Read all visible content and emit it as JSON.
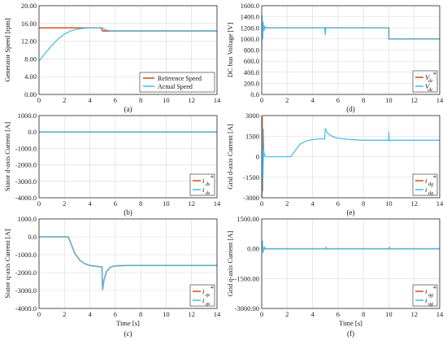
{
  "colors": {
    "reference": "#d95319",
    "actual": "#4dbeee",
    "grid": "#d9d9d9",
    "axis": "#262626"
  },
  "chart_data": [
    {
      "id": "a",
      "type": "line",
      "caption": "(a)",
      "xlabel": "",
      "ylabel": "Generator Speed [rpm]",
      "xlim": [
        0,
        14
      ],
      "ylim": [
        0,
        20
      ],
      "xticks": [
        "0",
        "2",
        "4",
        "6",
        "8",
        "10",
        "12",
        "14"
      ],
      "yticks": [
        "0.00",
        "4.00",
        "8.00",
        "12.00",
        "16.00",
        "20.00"
      ],
      "legend_position": "bottom-right",
      "series": [
        {
          "name": "Reference Speed",
          "color": "#d95319",
          "x": [
            0,
            4.9,
            5.0,
            14
          ],
          "y": [
            15.0,
            15.0,
            14.3,
            14.3
          ]
        },
        {
          "name": "Actual Speed",
          "color": "#4dbeee",
          "x": [
            0,
            0.5,
            1.0,
            1.5,
            2.0,
            2.5,
            3.0,
            3.5,
            4.0,
            4.5,
            5.0,
            5.2,
            5.5,
            6,
            14
          ],
          "y": [
            7.5,
            9.3,
            11.0,
            12.5,
            13.6,
            14.3,
            14.7,
            14.9,
            15.0,
            15.0,
            15.0,
            14.6,
            14.35,
            14.3,
            14.3
          ]
        }
      ]
    },
    {
      "id": "d",
      "type": "line",
      "caption": "(d)",
      "xlabel": "",
      "ylabel": "DC bus Voltage [V]",
      "xlim": [
        0,
        14
      ],
      "ylim": [
        0,
        1600
      ],
      "xticks": [
        "0",
        "2",
        "4",
        "6",
        "8",
        "10",
        "12",
        "14"
      ],
      "yticks": [
        "0.0",
        "200.0",
        "400.0",
        "600.0",
        "800.0",
        "1000.0",
        "1200.0",
        "1400.0",
        "1600.0"
      ],
      "legend_position": "bottom-right",
      "legend": [
        {
          "symbol": "V",
          "sub": "dc",
          "star": "*",
          "color": "#d95319"
        },
        {
          "symbol": "V",
          "sub": "dc",
          "star": "",
          "color": "#4dbeee"
        }
      ],
      "series": [
        {
          "name": "",
          "color": "#d95319",
          "x": [
            0,
            10.0,
            10.0,
            14
          ],
          "y": [
            1200,
            1200,
            1000,
            1000
          ]
        },
        {
          "name": "",
          "color": "#4dbeee",
          "x": [
            0,
            0.03,
            0.08,
            0.12,
            0.18,
            0.25,
            0.35,
            0.5,
            4.95,
            5.0,
            5.05,
            5.1,
            9.98,
            10.0,
            10.05,
            14
          ],
          "y": [
            800,
            1420,
            1000,
            1300,
            1150,
            1230,
            1200,
            1200,
            1200,
            1080,
            1210,
            1200,
            1200,
            1010,
            1000,
            1000
          ]
        }
      ]
    },
    {
      "id": "b",
      "type": "line",
      "caption": "(b)",
      "xlabel": "",
      "ylabel": "Stator d-axis Current [A]",
      "xlim": [
        0,
        14
      ],
      "ylim": [
        -4000,
        1000
      ],
      "xticks": [
        "0",
        "2",
        "4",
        "6",
        "8",
        "10",
        "12",
        "14"
      ],
      "yticks": [
        "-4000.0",
        "-3000.0",
        "-2000.0",
        "-1000.0",
        "0.0",
        "1000.0"
      ],
      "legend_position": "bottom-right",
      "legend": [
        {
          "symbol": "i",
          "sub": "ds",
          "star": "*",
          "color": "#d95319"
        },
        {
          "symbol": "i",
          "sub": "ds",
          "star": "",
          "color": "#4dbeee"
        }
      ],
      "series": [
        {
          "name": "",
          "color": "#d95319",
          "x": [
            0,
            14
          ],
          "y": [
            0,
            0
          ]
        },
        {
          "name": "",
          "color": "#4dbeee",
          "x": [
            0,
            14
          ],
          "y": [
            0,
            0
          ]
        }
      ]
    },
    {
      "id": "e",
      "type": "line",
      "caption": "(e)",
      "xlabel": "",
      "ylabel": "Grid d-axis Current [A]",
      "xlim": [
        0,
        14
      ],
      "ylim": [
        -3000,
        3000
      ],
      "xticks": [
        "0",
        "2",
        "4",
        "6",
        "8",
        "10",
        "12",
        "14"
      ],
      "yticks": [
        "-3000",
        "-1500",
        "0",
        "1500",
        "3000"
      ],
      "legend_position": "bottom-right",
      "legend": [
        {
          "symbol": "i",
          "sub": "dg",
          "star": "*",
          "color": "#d95319"
        },
        {
          "symbol": "i",
          "sub": "dg",
          "star": "",
          "color": "#4dbeee"
        }
      ],
      "series": [
        {
          "name": "",
          "color": "#d95319",
          "x": [
            0,
            0.03,
            0.06,
            0.1,
            0.15
          ],
          "y": [
            0,
            2900,
            -2500,
            2000,
            0
          ]
        },
        {
          "name": "",
          "color": "#4dbeee",
          "x": [
            0,
            0.03,
            0.06,
            0.1,
            0.15,
            0.2,
            0.3,
            2.3,
            2.6,
            3.0,
            3.5,
            4.0,
            4.5,
            4.95,
            5.0,
            5.2,
            5.6,
            6.0,
            7.0,
            8.0,
            9.98,
            10.0,
            10.03,
            10.1,
            14
          ],
          "y": [
            0,
            -3000,
            2000,
            -1500,
            500,
            200,
            0,
            0,
            400,
            900,
            1150,
            1250,
            1300,
            1300,
            2050,
            1700,
            1450,
            1350,
            1250,
            1200,
            1200,
            1800,
            1150,
            1200,
            1200
          ]
        }
      ]
    },
    {
      "id": "c",
      "type": "line",
      "caption": "(c)",
      "xlabel": "Time [s]",
      "ylabel": "Stator q-axis Current [A]",
      "xlim": [
        0,
        14
      ],
      "ylim": [
        -4000,
        1000
      ],
      "xticks": [
        "0",
        "2",
        "4",
        "6",
        "8",
        "10",
        "12",
        "14"
      ],
      "yticks": [
        "-4000.0",
        "-3000.0",
        "-2000.0",
        "-1000.0",
        "0.0",
        "1000.0"
      ],
      "legend_position": "bottom-right",
      "legend": [
        {
          "symbol": "i",
          "sub": "qs",
          "star": "*",
          "color": "#d95319"
        },
        {
          "symbol": "i",
          "sub": "qs",
          "star": "",
          "color": "#4dbeee"
        }
      ],
      "series": [
        {
          "name": "",
          "color": "#d95319",
          "x": [
            0,
            2.3,
            2.5,
            2.8,
            3.2,
            3.6,
            4.0,
            4.5,
            4.95,
            5.0,
            5.1,
            5.3,
            5.6,
            6.0,
            7.0,
            14
          ],
          "y": [
            0,
            0,
            -350,
            -900,
            -1300,
            -1500,
            -1600,
            -1650,
            -1680,
            -2950,
            -2450,
            -1950,
            -1700,
            -1620,
            -1600,
            -1600
          ]
        },
        {
          "name": "",
          "color": "#4dbeee",
          "x": [
            0,
            2.3,
            2.5,
            2.8,
            3.2,
            3.6,
            4.0,
            4.5,
            4.95,
            5.0,
            5.1,
            5.3,
            5.6,
            6.0,
            7.0,
            14
          ],
          "y": [
            0,
            0,
            -350,
            -900,
            -1300,
            -1500,
            -1600,
            -1650,
            -1680,
            -2950,
            -2450,
            -1950,
            -1700,
            -1620,
            -1600,
            -1600
          ]
        }
      ]
    },
    {
      "id": "f",
      "type": "line",
      "caption": "(f)",
      "xlabel": "Time [s]",
      "ylabel": "Grid q-axis Current [A]",
      "xlim": [
        0,
        14
      ],
      "ylim": [
        -3000,
        1500
      ],
      "xticks": [
        "0",
        "2",
        "4",
        "6",
        "8",
        "10",
        "12",
        "14"
      ],
      "yticks": [
        "-3000.00",
        "-1500.00",
        "0.00",
        "1500.00"
      ],
      "legend_position": "bottom-right",
      "legend": [
        {
          "symbol": "i",
          "sub": "qg",
          "star": "*",
          "color": "#d95319"
        },
        {
          "symbol": "i",
          "sub": "qg",
          "star": "",
          "color": "#4dbeee"
        }
      ],
      "series": [
        {
          "name": "",
          "color": "#d95319",
          "x": [
            0,
            14
          ],
          "y": [
            0,
            0
          ]
        },
        {
          "name": "",
          "color": "#4dbeee",
          "x": [
            0,
            0.05,
            0.1,
            0.2,
            0.3,
            5.0,
            5.05,
            5.1,
            10.0,
            10.05,
            10.1,
            14
          ],
          "y": [
            0,
            400,
            -200,
            100,
            0,
            0,
            80,
            0,
            0,
            80,
            0,
            0
          ]
        }
      ]
    }
  ]
}
